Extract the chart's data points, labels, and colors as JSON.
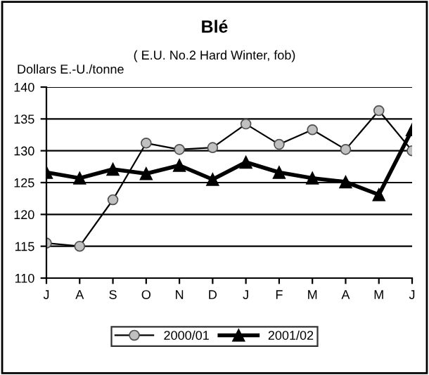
{
  "chart_data": {
    "type": "line",
    "title": "Blé",
    "subtitle": "( E.U. No.2 Hard Winter, fob)",
    "ylabel": "Dollars E.-U./tonne",
    "categories": [
      "J",
      "A",
      "S",
      "O",
      "N",
      "D",
      "J",
      "F",
      "M",
      "A",
      "M",
      "J"
    ],
    "series": [
      {
        "name": "2000/01",
        "color": "#c0c0c0",
        "marker": "circle",
        "values": [
          115.5,
          115.0,
          122.3,
          131.2,
          130.2,
          130.5,
          134.2,
          131.0,
          133.3,
          130.2,
          136.3,
          130.0
        ]
      },
      {
        "name": "2001/02",
        "color": "#000000",
        "marker": "triangle",
        "values": [
          126.6,
          125.7,
          127.1,
          126.4,
          127.7,
          125.5,
          128.2,
          126.6,
          125.7,
          125.1,
          123.1,
          133.3
        ]
      }
    ],
    "ylim": [
      110,
      140
    ],
    "yticks": [
      110,
      115,
      120,
      125,
      130,
      135,
      140
    ],
    "grid": "y",
    "legend": "bottom"
  }
}
